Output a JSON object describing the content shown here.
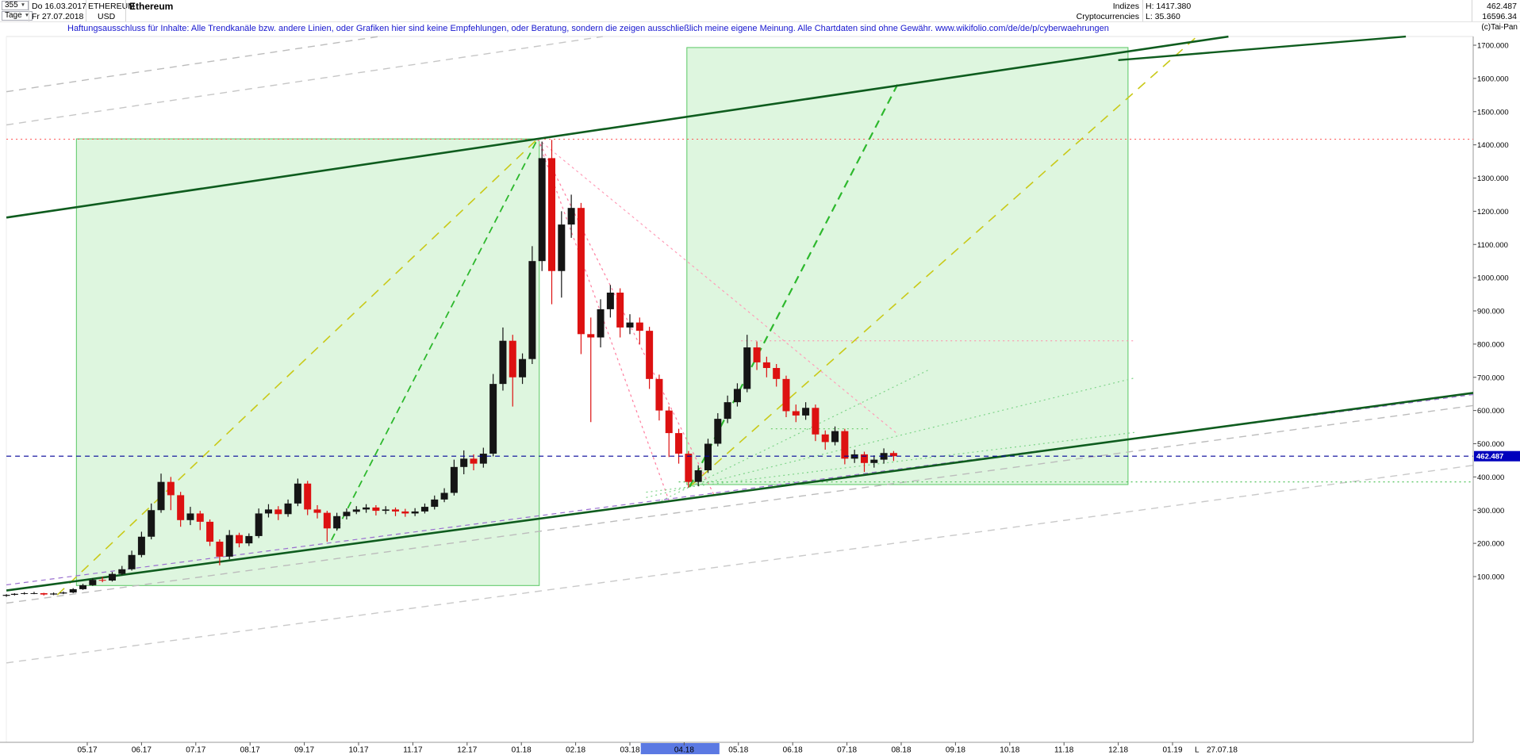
{
  "header": {
    "bars_dropdown": "355",
    "period_dropdown": "Tage",
    "date_from": "Do 16.03.2017",
    "date_to": "Fr 27.07.2018",
    "symbol": "ETHEREUM",
    "currency": "USD",
    "title": "Ethereum",
    "group1": "Indizes",
    "group2": "Cryptocurrencies",
    "high_label": "H: 1417.380",
    "low_label": "L: 35.360",
    "value1": "462.487",
    "value2": "16596.34"
  },
  "disclaimer": "Haftungsausschluss für Inhalte: Alle Trendkanäle bzw. andere Linien, oder Grafiken hier sind keine Empfehlungen, oder Beratung, sondern die zeigen ausschließlich meine eigene Meinung. Alle Chartdaten sind ohne Gewähr.  www.wikifolio.com/de/de/p/cyberwaehrungen",
  "copyright": "(c)Tai-Pan",
  "chart_data": {
    "type": "candlestick",
    "title": "Ethereum",
    "instrument": "ETHEREUM / USD, Tage (daily), 16.03.2017 - 27.07.2018",
    "t_unit": "months since 2017-04-01",
    "last_price": 462.487,
    "last_price_label": "462.487",
    "low_marker": "L",
    "last_date_label": "27.07.18",
    "y_axis": {
      "decimals": 3,
      "ticks": [
        1700,
        1600,
        1500,
        1400,
        1300,
        1200,
        1100,
        1000,
        900,
        800,
        700,
        600,
        500,
        400,
        300,
        200,
        100
      ]
    },
    "x_ticks": [
      {
        "label": "05.17",
        "t": 1
      },
      {
        "label": "06.17",
        "t": 2
      },
      {
        "label": "07.17",
        "t": 3
      },
      {
        "label": "08.17",
        "t": 4
      },
      {
        "label": "09.17",
        "t": 5
      },
      {
        "label": "10.17",
        "t": 6
      },
      {
        "label": "11.17",
        "t": 7
      },
      {
        "label": "12.17",
        "t": 8
      },
      {
        "label": "01.18",
        "t": 9
      },
      {
        "label": "02.18",
        "t": 10
      },
      {
        "label": "03.18",
        "t": 11
      },
      {
        "label": "04.18",
        "t": 12
      },
      {
        "label": "05.18",
        "t": 13
      },
      {
        "label": "06.18",
        "t": 14
      },
      {
        "label": "07.18",
        "t": 15
      },
      {
        "label": "08.18",
        "t": 16
      },
      {
        "label": "09.18",
        "t": 17
      },
      {
        "label": "10.18",
        "t": 18
      },
      {
        "label": "11.18",
        "t": 19
      },
      {
        "label": "12.18",
        "t": 20
      },
      {
        "label": "01.19",
        "t": 21
      }
    ],
    "selection": {
      "label": "04.18",
      "t": [
        11.2,
        12.65
      ]
    },
    "colors": {
      "candle_up": "#151515",
      "candle_down": "#dd1111",
      "box_fill": "#bdeec0",
      "box_stroke": "#58c763",
      "dark_green": "#0e5c1e",
      "price_marker_bg": "#0000bd",
      "selection_bg": "#5b79e3",
      "current_price_line": "#000099"
    },
    "boxes": [
      {
        "name": "trend-box-2017",
        "t": [
          0.8,
          9.33
        ],
        "p": [
          73,
          1418
        ],
        "fill": "#bdeec0",
        "opacity": 0.5,
        "stroke": "#58c763"
      },
      {
        "name": "trend-box-2018",
        "t": [
          12.05,
          20.18
        ],
        "p": [
          377,
          1693
        ],
        "fill": "#bdeec0",
        "opacity": 0.5,
        "stroke": "#58c763"
      }
    ],
    "lines": [
      {
        "name": "channel-gray-top-1",
        "color": "#bcbcbc",
        "w": 1.4,
        "dash": "9 7",
        "layer": "below",
        "pts": [
          [
            -0.49,
            1560
          ],
          [
            6.37,
            1726
          ]
        ]
      },
      {
        "name": "channel-gray-top-2",
        "color": "#c6c6c6",
        "w": 1.4,
        "dash": "9 7",
        "layer": "below",
        "pts": [
          [
            -0.49,
            1460
          ],
          [
            10.5,
            1726
          ]
        ]
      },
      {
        "name": "channel-gray-bottom-1",
        "color": "#bcbcbc",
        "w": 1.4,
        "dash": "9 7",
        "layer": "below",
        "pts": [
          [
            -0.49,
            20
          ],
          [
            26.54,
            615
          ]
        ]
      },
      {
        "name": "channel-gray-bottom-2",
        "color": "#c9c9c9",
        "w": 1.4,
        "dash": "9 7",
        "layer": "below",
        "pts": [
          [
            -0.49,
            -160
          ],
          [
            26.54,
            435
          ]
        ]
      },
      {
        "name": "fan-yellow-2017",
        "color": "#c9c918",
        "w": 1.6,
        "dash": "12 9",
        "layer": "below",
        "pts": [
          [
            0.45,
            45
          ],
          [
            9.3,
            1418
          ]
        ]
      },
      {
        "name": "fan-yellow-2018",
        "color": "#c9c918",
        "w": 1.6,
        "dash": "12 9",
        "layer": "below",
        "pts": [
          [
            12.1,
            370
          ],
          [
            21.45,
            1726
          ]
        ]
      },
      {
        "name": "resistance-ath-1417",
        "color": "#ff5555",
        "w": 1,
        "dash": "2 4",
        "layer": "below",
        "pts": [
          [
            -0.49,
            1417
          ],
          [
            26.54,
            1417
          ]
        ]
      },
      {
        "name": "resistance-may18-810",
        "color": "#ff88a8",
        "w": 1,
        "dash": "2 4",
        "layer": "below",
        "pts": [
          [
            13.05,
            810
          ],
          [
            20.3,
            810
          ]
        ]
      },
      {
        "name": "fan-pink-steep-1",
        "color": "#ff7d9e",
        "w": 1.2,
        "dash": "3 4",
        "layer": "below",
        "pts": [
          [
            9.3,
            1418
          ],
          [
            11.72,
            329
          ]
        ]
      },
      {
        "name": "fan-pink-steep-2",
        "color": "#ff7d9e",
        "w": 1.2,
        "dash": "3 4",
        "layer": "below",
        "pts": [
          [
            9.3,
            1418
          ],
          [
            12.55,
            346
          ]
        ]
      },
      {
        "name": "fan-pink-shallow",
        "color": "#ff9db8",
        "w": 1.2,
        "dash": "3 4",
        "layer": "below",
        "pts": [
          [
            9.3,
            1418
          ],
          [
            15.95,
            527
          ]
        ]
      },
      {
        "name": "support-green-385",
        "color": "#55c55f",
        "w": 1.2,
        "dash": "2 4",
        "layer": "below",
        "pts": [
          [
            11.9,
            385
          ],
          [
            26.54,
            385
          ]
        ]
      },
      {
        "name": "minor-green-545",
        "color": "#77d077",
        "w": 1.2,
        "dash": "2 4",
        "layer": "below",
        "pts": [
          [
            13.6,
            545
          ],
          [
            15.4,
            545
          ]
        ]
      },
      {
        "name": "fan-green-1",
        "color": "#7fd48a",
        "w": 1.2,
        "dash": "2 4",
        "layer": "below",
        "pts": [
          [
            11.3,
            338
          ],
          [
            20.3,
            698
          ]
        ]
      },
      {
        "name": "fan-green-2",
        "color": "#7fd48a",
        "w": 1.2,
        "dash": "2 4",
        "layer": "below",
        "pts": [
          [
            11.5,
            322
          ],
          [
            16.5,
            722
          ]
        ]
      },
      {
        "name": "fan-green-3",
        "color": "#7fd48a",
        "w": 1.2,
        "dash": "2 4",
        "layer": "below",
        "pts": [
          [
            11.3,
            354
          ],
          [
            20.3,
            534
          ]
        ]
      },
      {
        "name": "trend-green-dashed-2017",
        "color": "#2db82d",
        "w": 1.8,
        "dash": "9 6",
        "layer": "below",
        "pts": [
          [
            5.5,
            210
          ],
          [
            9.3,
            1418
          ]
        ]
      },
      {
        "name": "trend-green-dashed-2018",
        "color": "#2db82d",
        "w": 2.2,
        "dash": "10 7",
        "layer": "below",
        "pts": [
          [
            12.1,
            370
          ],
          [
            15.95,
            1587
          ]
        ]
      },
      {
        "name": "trend-purple-dashed",
        "color": "#9a6fd0",
        "w": 1.2,
        "dash": "6 5",
        "layer": "below",
        "pts": [
          [
            -0.49,
            75
          ],
          [
            26.54,
            648
          ]
        ]
      },
      {
        "name": "channel-darkgreen-upper",
        "color": "#0e5c1e",
        "w": 2.6,
        "dash": "",
        "layer": "mid",
        "pts": [
          [
            -0.49,
            1181
          ],
          [
            22.03,
            1726
          ]
        ]
      },
      {
        "name": "channel-darkgreen-corner",
        "color": "#0e5c1e",
        "w": 2.4,
        "dash": "",
        "layer": "mid",
        "pts": [
          [
            20.0,
            1655
          ],
          [
            25.3,
            1726
          ]
        ]
      },
      {
        "name": "channel-darkgreen-lower",
        "color": "#0e5c1e",
        "w": 2.6,
        "dash": "",
        "layer": "mid",
        "pts": [
          [
            -0.49,
            58
          ],
          [
            26.54,
            653
          ]
        ]
      },
      {
        "name": "current-price-line",
        "color": "#000099",
        "w": 1.2,
        "dash": "6 5",
        "layer": "above",
        "pts": [
          [
            -0.49,
            462.487
          ],
          [
            26.54,
            462.487
          ]
        ]
      }
    ],
    "candles": [
      [
        -0.49,
        42,
        47,
        39,
        45
      ],
      [
        -0.34,
        45,
        50,
        43,
        48
      ],
      [
        -0.16,
        48,
        53,
        46,
        50
      ],
      [
        0.02,
        50,
        54,
        47,
        50
      ],
      [
        0.2,
        50,
        51,
        43,
        46
      ],
      [
        0.38,
        46,
        52,
        44,
        49
      ],
      [
        0.56,
        49,
        55,
        47,
        52
      ],
      [
        0.74,
        52,
        65,
        50,
        62
      ],
      [
        0.92,
        62,
        78,
        60,
        74
      ],
      [
        1.1,
        74,
        95,
        72,
        90
      ],
      [
        1.28,
        90,
        99,
        83,
        88
      ],
      [
        1.46,
        88,
        114,
        85,
        108
      ],
      [
        1.64,
        108,
        132,
        104,
        122
      ],
      [
        1.82,
        122,
        178,
        118,
        165
      ],
      [
        2.0,
        165,
        235,
        158,
        220
      ],
      [
        2.18,
        220,
        320,
        212,
        300
      ],
      [
        2.36,
        300,
        410,
        292,
        385
      ],
      [
        2.54,
        385,
        400,
        300,
        345
      ],
      [
        2.72,
        345,
        355,
        250,
        270
      ],
      [
        2.9,
        270,
        310,
        255,
        290
      ],
      [
        3.08,
        290,
        298,
        240,
        265
      ],
      [
        3.26,
        265,
        272,
        192,
        205
      ],
      [
        3.44,
        205,
        212,
        134,
        160
      ],
      [
        3.62,
        160,
        240,
        152,
        225
      ],
      [
        3.8,
        225,
        232,
        188,
        200
      ],
      [
        3.98,
        200,
        230,
        192,
        222
      ],
      [
        4.16,
        222,
        305,
        216,
        290
      ],
      [
        4.34,
        290,
        318,
        278,
        302
      ],
      [
        4.52,
        302,
        312,
        270,
        288
      ],
      [
        4.7,
        288,
        332,
        280,
        320
      ],
      [
        4.88,
        320,
        395,
        312,
        380
      ],
      [
        5.06,
        380,
        388,
        285,
        302
      ],
      [
        5.24,
        302,
        315,
        275,
        292
      ],
      [
        5.42,
        292,
        298,
        205,
        245
      ],
      [
        5.6,
        245,
        292,
        238,
        282
      ],
      [
        5.78,
        282,
        305,
        272,
        295
      ],
      [
        5.96,
        295,
        312,
        288,
        302
      ],
      [
        6.14,
        302,
        318,
        292,
        308
      ],
      [
        6.32,
        308,
        315,
        284,
        298
      ],
      [
        6.5,
        298,
        312,
        288,
        302
      ],
      [
        6.68,
        302,
        308,
        282,
        296
      ],
      [
        6.86,
        296,
        304,
        280,
        290
      ],
      [
        7.04,
        290,
        306,
        282,
        296
      ],
      [
        7.22,
        296,
        320,
        290,
        310
      ],
      [
        7.4,
        310,
        344,
        302,
        332
      ],
      [
        7.58,
        332,
        366,
        324,
        352
      ],
      [
        7.76,
        352,
        452,
        344,
        430
      ],
      [
        7.94,
        430,
        480,
        408,
        455
      ],
      [
        8.12,
        455,
        468,
        420,
        440
      ],
      [
        8.3,
        440,
        488,
        428,
        470
      ],
      [
        8.48,
        470,
        710,
        462,
        680
      ],
      [
        8.66,
        680,
        850,
        660,
        810
      ],
      [
        8.84,
        810,
        828,
        612,
        700
      ],
      [
        9.02,
        700,
        772,
        680,
        755
      ],
      [
        9.2,
        755,
        1095,
        740,
        1050
      ],
      [
        9.38,
        1050,
        1410,
        1020,
        1360
      ],
      [
        9.56,
        1360,
        1415,
        920,
        1020
      ],
      [
        9.74,
        1020,
        1200,
        940,
        1160
      ],
      [
        9.92,
        1160,
        1250,
        1120,
        1210
      ],
      [
        10.1,
        1210,
        1225,
        770,
        830
      ],
      [
        10.28,
        830,
        880,
        565,
        820
      ],
      [
        10.46,
        820,
        935,
        790,
        905
      ],
      [
        10.64,
        905,
        978,
        880,
        955
      ],
      [
        10.82,
        955,
        968,
        820,
        850
      ],
      [
        11.0,
        850,
        890,
        830,
        865
      ],
      [
        11.18,
        865,
        880,
        800,
        840
      ],
      [
        11.36,
        840,
        852,
        665,
        695
      ],
      [
        11.54,
        695,
        708,
        570,
        600
      ],
      [
        11.72,
        600,
        612,
        460,
        532
      ],
      [
        11.9,
        532,
        545,
        440,
        470
      ],
      [
        12.08,
        470,
        478,
        368,
        385
      ],
      [
        12.26,
        385,
        435,
        372,
        420
      ],
      [
        12.44,
        420,
        515,
        412,
        500
      ],
      [
        12.62,
        500,
        592,
        492,
        575
      ],
      [
        12.8,
        575,
        645,
        562,
        625
      ],
      [
        12.98,
        625,
        682,
        612,
        665
      ],
      [
        13.16,
        665,
        828,
        655,
        790
      ],
      [
        13.34,
        790,
        808,
        722,
        745
      ],
      [
        13.52,
        745,
        762,
        700,
        728
      ],
      [
        13.7,
        728,
        740,
        672,
        695
      ],
      [
        13.88,
        695,
        705,
        580,
        598
      ],
      [
        14.06,
        598,
        618,
        565,
        585
      ],
      [
        14.24,
        585,
        625,
        572,
        608
      ],
      [
        14.42,
        608,
        618,
        508,
        528
      ],
      [
        14.6,
        528,
        540,
        482,
        505
      ],
      [
        14.78,
        505,
        552,
        495,
        538
      ],
      [
        14.96,
        538,
        545,
        438,
        455
      ],
      [
        15.14,
        455,
        482,
        442,
        468
      ],
      [
        15.32,
        468,
        476,
        415,
        442
      ],
      [
        15.5,
        442,
        465,
        428,
        452
      ],
      [
        15.68,
        452,
        486,
        440,
        472
      ],
      [
        15.86,
        472,
        478,
        448,
        462.487
      ]
    ]
  }
}
